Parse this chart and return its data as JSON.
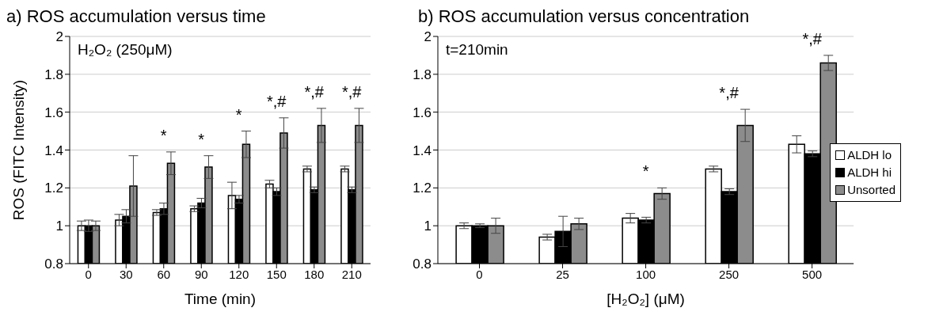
{
  "chart_data": [
    {
      "type": "bar",
      "title": "a) ROS accumulation versus time",
      "xlabel": "Time (min)",
      "ylabel": "ROS (FITC Intensity)",
      "categories": [
        "0",
        "30",
        "60",
        "90",
        "120",
        "150",
        "180",
        "210"
      ],
      "series": [
        {
          "color": "#ffffff",
          "values": [
            1.0,
            1.03,
            1.07,
            1.09,
            1.16,
            1.22,
            1.3,
            1.3
          ],
          "errors": [
            0.025,
            0.03,
            0.015,
            0.015,
            0.07,
            0.02,
            0.015,
            0.015
          ]
        },
        {
          "color": "#000000",
          "values": [
            1.0,
            1.05,
            1.09,
            1.12,
            1.14,
            1.18,
            1.19,
            1.19
          ],
          "errors": [
            0.03,
            0.035,
            0.03,
            0.025,
            0.02,
            0.02,
            0.015,
            0.015
          ]
        },
        {
          "color": "#8c8c8c",
          "values": [
            1.0,
            1.21,
            1.33,
            1.31,
            1.43,
            1.49,
            1.53,
            1.53
          ],
          "errors": [
            0.025,
            0.16,
            0.06,
            0.06,
            0.07,
            0.08,
            0.09,
            0.09
          ]
        }
      ],
      "ylim": [
        0.8,
        2
      ],
      "yticks": [
        0.8,
        1,
        1.2,
        1.4,
        1.6,
        1.8,
        2
      ],
      "grid": "y",
      "legend": false,
      "annotations": [
        "H₂O₂ (250μM)",
        "*",
        "*",
        "*",
        "*,#",
        "*,#",
        "*,#"
      ]
    },
    {
      "type": "bar",
      "title": "b) ROS accumulation versus concentration",
      "xlabel": "[H₂O₂] (μM)",
      "categories": [
        "0",
        "25",
        "100",
        "250",
        "500"
      ],
      "series": [
        {
          "name": "ALDH lo",
          "color": "#ffffff",
          "values": [
            1.0,
            0.94,
            1.04,
            1.3,
            1.43
          ],
          "errors": [
            0.015,
            0.015,
            0.025,
            0.015,
            0.045
          ]
        },
        {
          "name": "ALDH hi",
          "color": "#000000",
          "values": [
            1.0,
            0.97,
            1.03,
            1.18,
            1.38
          ],
          "errors": [
            0.01,
            0.08,
            0.015,
            0.015,
            0.015
          ]
        },
        {
          "name": "Unsorted",
          "color": "#8c8c8c",
          "values": [
            1.0,
            1.01,
            1.17,
            1.53,
            1.86
          ],
          "errors": [
            0.04,
            0.03,
            0.03,
            0.085,
            0.04
          ]
        }
      ],
      "ylim": [
        0.8,
        2
      ],
      "yticks": [
        0.8,
        1,
        1.2,
        1.4,
        1.6,
        1.8,
        2
      ],
      "grid": "y",
      "legend": "right",
      "annotations": [
        "t=210min",
        "*",
        "*,#",
        "*,#"
      ]
    }
  ]
}
